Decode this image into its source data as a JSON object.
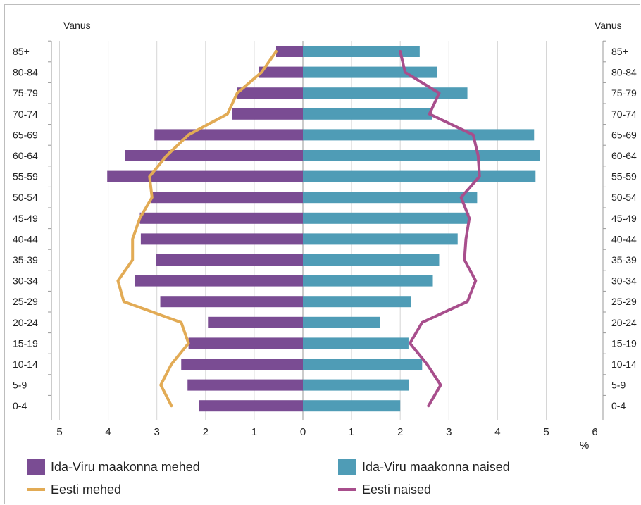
{
  "chart_data": {
    "type": "bar",
    "orientation": "horizontal-population-pyramid",
    "left_axis_title": "Vanus",
    "right_axis_title": "Vanus",
    "x_unit_label": "%",
    "x_ticks": [
      "5",
      "4",
      "3",
      "2",
      "1",
      "0",
      "1",
      "2",
      "3",
      "4",
      "5",
      "6"
    ],
    "xlim_left": [
      0,
      5
    ],
    "xlim_right": [
      0,
      6
    ],
    "grid": true,
    "legend_position": "bottom",
    "categories": [
      "85+",
      "80-84",
      "75-79",
      "70-74",
      "65-69",
      "60-64",
      "55-59",
      "50-54",
      "45-49",
      "40-44",
      "35-39",
      "30-34",
      "25-29",
      "20-24",
      "15-19",
      "10-14",
      "5-9",
      "0-4"
    ],
    "series": [
      {
        "name": "Ida-Viru maakonna mehed",
        "kind": "bar",
        "side": "left",
        "color": "#7a4c93",
        "values": [
          0.55,
          0.9,
          1.35,
          1.45,
          3.05,
          3.65,
          4.02,
          3.12,
          3.35,
          3.33,
          3.02,
          3.45,
          2.93,
          1.95,
          2.35,
          2.5,
          2.37,
          2.13
        ]
      },
      {
        "name": "Ida-Viru maakonna naised",
        "kind": "bar",
        "side": "right",
        "color": "#4f9cb6",
        "values": [
          2.4,
          2.75,
          3.38,
          2.65,
          4.75,
          4.87,
          4.78,
          3.58,
          3.42,
          3.18,
          2.8,
          2.67,
          2.22,
          1.58,
          2.17,
          2.45,
          2.18,
          2.0
        ]
      },
      {
        "name": "Eesti mehed",
        "kind": "line",
        "side": "left",
        "color": "#e2ab55",
        "values": [
          0.55,
          0.85,
          1.35,
          1.55,
          2.35,
          2.8,
          3.15,
          3.1,
          3.35,
          3.5,
          3.5,
          3.8,
          3.68,
          2.5,
          2.35,
          2.7,
          2.92,
          2.7
        ]
      },
      {
        "name": "Eesti naised",
        "kind": "line",
        "side": "right",
        "color": "#a84e8c",
        "values": [
          2.0,
          2.1,
          2.8,
          2.6,
          3.5,
          3.6,
          3.63,
          3.25,
          3.42,
          3.35,
          3.32,
          3.55,
          3.38,
          2.45,
          2.2,
          2.55,
          2.83,
          2.58
        ]
      }
    ]
  }
}
